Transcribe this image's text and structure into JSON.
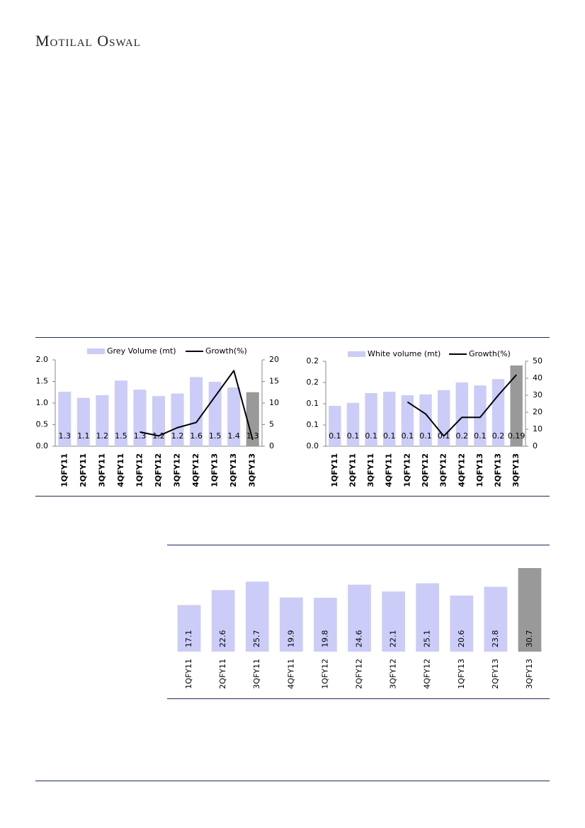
{
  "header": {
    "brand": "Motilal Oswal"
  },
  "chart_data": [
    {
      "type": "bar_line",
      "categories": [
        "1QFY11",
        "2QFY11",
        "3QFY11",
        "4QFY11",
        "1QFY12",
        "2QFY12",
        "3QFY12",
        "4QFY12",
        "1QFY13",
        "2QFY13",
        "3QFY13"
      ],
      "series": [
        {
          "name": "Grey Volume (mt)",
          "kind": "bar",
          "colors": [
            "#ccccf8",
            "#ccccf8",
            "#ccccf8",
            "#ccccf8",
            "#ccccf8",
            "#ccccf8",
            "#ccccf8",
            "#ccccf8",
            "#ccccf8",
            "#ccccf8",
            "#999999"
          ],
          "values": [
            1.26,
            1.12,
            1.18,
            1.52,
            1.31,
            1.16,
            1.22,
            1.6,
            1.49,
            1.36,
            1.25
          ],
          "value_labels": [
            "1.3",
            "1.1",
            "1.2",
            "1.5",
            "1.3",
            "1.2",
            "1.2",
            "1.6",
            "1.5",
            "1.4",
            "1.3"
          ]
        },
        {
          "name": "Growth(%)",
          "kind": "line",
          "axis": "y2",
          "color": "#000000",
          "values": [
            null,
            null,
            null,
            null,
            3.3,
            2.4,
            4.3,
            5.5,
            11.5,
            17.5,
            1.5
          ]
        }
      ],
      "ylim": [
        0,
        2.0
      ],
      "yticks": [
        {
          "value": 0,
          "label": "0.0"
        },
        0.5,
        {
          "value": 1,
          "label": "1.0"
        },
        1.5,
        {
          "value": 2,
          "label": "2.0"
        }
      ],
      "y2lim": [
        0,
        20
      ],
      "y2ticks": [
        0,
        5,
        10,
        15,
        20
      ]
    },
    {
      "type": "bar_line",
      "categories": [
        "1QFY11",
        "2QFY11",
        "3QFY11",
        "4QFY11",
        "1QFY12",
        "2QFY12",
        "3QFY12",
        "4QFY12",
        "1QFY13",
        "2QFY13",
        "3QFY13"
      ],
      "series": [
        {
          "name": "White volume (mt)",
          "kind": "bar",
          "colors": [
            "#ccccf8",
            "#ccccf8",
            "#ccccf8",
            "#ccccf8",
            "#ccccf8",
            "#ccccf8",
            "#ccccf8",
            "#ccccf8",
            "#ccccf8",
            "#ccccf8",
            "#999999"
          ],
          "values": [
            0.095,
            0.102,
            0.125,
            0.128,
            0.12,
            0.122,
            0.132,
            0.15,
            0.143,
            0.158,
            0.19
          ],
          "value_labels": [
            "0.1",
            "0.1",
            "0.1",
            "0.1",
            "0.1",
            "0.1",
            "0.1",
            "0.2",
            "0.1",
            "0.2",
            "0.19"
          ]
        },
        {
          "name": "Growth(%)",
          "kind": "line",
          "axis": "y2",
          "color": "#000000",
          "values": [
            null,
            null,
            null,
            null,
            26,
            19,
            6,
            17,
            17,
            30,
            42
          ]
        }
      ],
      "ylim": [
        0,
        0.2
      ],
      "yticks": [
        {
          "value": 0,
          "label": "0.0"
        },
        {
          "value": 0.05,
          "label": "0.1"
        },
        0.1,
        {
          "value": 0.15,
          "label": "0.2"
        },
        0.2
      ],
      "y2lim": [
        0,
        50
      ],
      "y2ticks": [
        0,
        10,
        20,
        30,
        40,
        50
      ]
    },
    {
      "type": "bar",
      "categories": [
        "1QFY11",
        "2QFY11",
        "3QFY11",
        "4QFY11",
        "1QFY12",
        "2QFY12",
        "3QFY12",
        "4QFY12",
        "1QFY13",
        "2QFY13",
        "3QFY13"
      ],
      "values": [
        17.1,
        22.6,
        25.7,
        19.9,
        19.8,
        24.6,
        22.1,
        25.1,
        20.6,
        23.8,
        30.7
      ],
      "colors": [
        "#ccccf8",
        "#ccccf8",
        "#ccccf8",
        "#ccccf8",
        "#ccccf8",
        "#ccccf8",
        "#ccccf8",
        "#ccccf8",
        "#ccccf8",
        "#ccccf8",
        "#999999"
      ]
    }
  ]
}
